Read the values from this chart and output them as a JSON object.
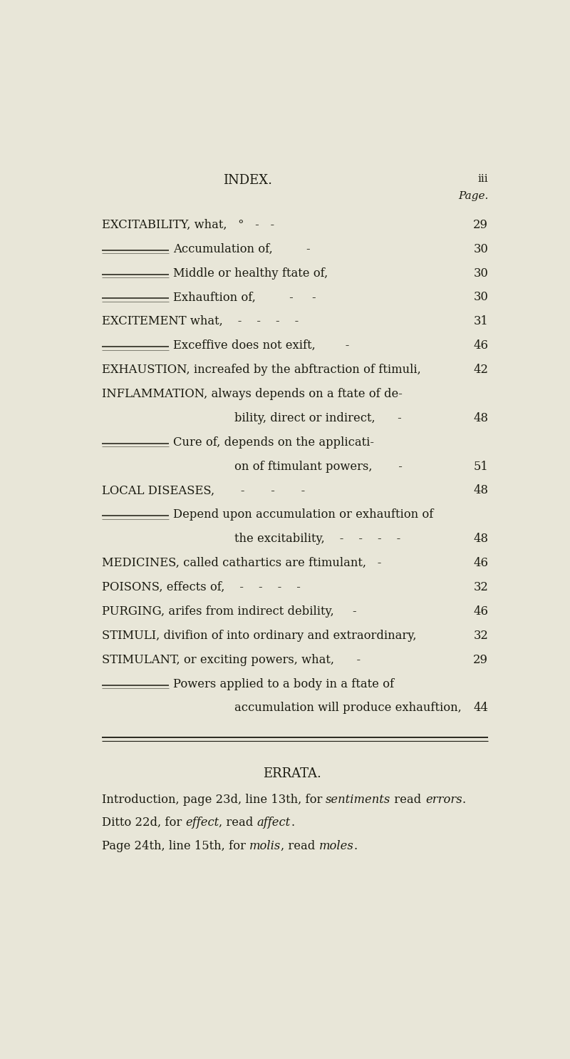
{
  "bg_color": "#e8e6d8",
  "text_color": "#1a1a10",
  "page_width": 8.0,
  "page_height": 14.85,
  "header_title": "INDEX.",
  "header_page": "iii",
  "header_page_label": "Page.",
  "lines": [
    {
      "left": "EXCITABILITY, what,   °   -   -",
      "right": "29",
      "indent": 0,
      "has_rule": false,
      "caps": true
    },
    {
      "left": "Accumulation of,         -",
      "right": "30",
      "indent": 1,
      "has_rule": true,
      "caps": false
    },
    {
      "left": "Middle or healthy ftate of,",
      "right": "30",
      "indent": 1,
      "has_rule": true,
      "caps": false
    },
    {
      "left": "Exhauftion of,         -     -",
      "right": "30",
      "indent": 1,
      "has_rule": true,
      "caps": false
    },
    {
      "left": "EXCITEMENT what,    -    -    -    -",
      "right": "31",
      "indent": 0,
      "has_rule": false,
      "caps": true
    },
    {
      "left": "Exceffive does not exift,        -",
      "right": "46",
      "indent": 1,
      "has_rule": true,
      "caps": false
    },
    {
      "left": "EXHAUSTION, increafed by the abftraction of ftimuli,",
      "right": "42",
      "indent": 0,
      "has_rule": false,
      "caps": true
    },
    {
      "left": "INFLAMMATION, always depends on a ftate of de-",
      "right": "",
      "indent": 0,
      "has_rule": false,
      "caps": true
    },
    {
      "left": "bility, direct or indirect,      -",
      "right": "48",
      "indent": 2,
      "has_rule": false,
      "caps": false
    },
    {
      "left": "Cure of, depends on the applicati-",
      "right": "",
      "indent": 1,
      "has_rule": true,
      "caps": false
    },
    {
      "left": "on of ftimulant powers,       -",
      "right": "51",
      "indent": 2,
      "has_rule": false,
      "caps": false
    },
    {
      "left": "LOCAL DISEASES,       -       -       -",
      "right": "48",
      "indent": 0,
      "has_rule": false,
      "caps": true
    },
    {
      "left": "Depend upon accumulation or exhauftion of",
      "right": "",
      "indent": 1,
      "has_rule": true,
      "caps": false
    },
    {
      "left": "the excitability,    -    -    -    -",
      "right": "48",
      "indent": 2,
      "has_rule": false,
      "caps": false
    },
    {
      "left": "MEDICINES, called cathartics are ftimulant,   -",
      "right": "46",
      "indent": 0,
      "has_rule": false,
      "caps": true
    },
    {
      "left": "POISONS, effects of,    -    -    -    -",
      "right": "32",
      "indent": 0,
      "has_rule": false,
      "caps": true
    },
    {
      "left": "PURGING, arifes from indirect debility,     -",
      "right": "46",
      "indent": 0,
      "has_rule": false,
      "caps": true
    },
    {
      "left": "STIMULI, divifion of into ordinary and extraordinary,",
      "right": "32",
      "indent": 0,
      "has_rule": false,
      "caps": true
    },
    {
      "left": "STIMULANT, or exciting powers, what,      -",
      "right": "29",
      "indent": 0,
      "has_rule": false,
      "caps": true
    },
    {
      "left": "Powers applied to a body in a ftate of",
      "right": "",
      "indent": 1,
      "has_rule": true,
      "caps": false
    },
    {
      "left": "accumulation will produce exhauftion,",
      "right": "44",
      "indent": 2,
      "has_rule": false,
      "caps": false
    }
  ],
  "errata_title": "ERRATA.",
  "errata_lines": [
    [
      "Introduction, page 23d, line 13th, for ",
      "sentiments",
      " read ",
      "errors",
      "."
    ],
    [
      "Ditto 22d, for ",
      "effect",
      ", read ",
      "affect",
      "."
    ],
    [
      "Page 24th, line 15th, for ",
      "molis",
      ", read ",
      "moles",
      "."
    ]
  ]
}
